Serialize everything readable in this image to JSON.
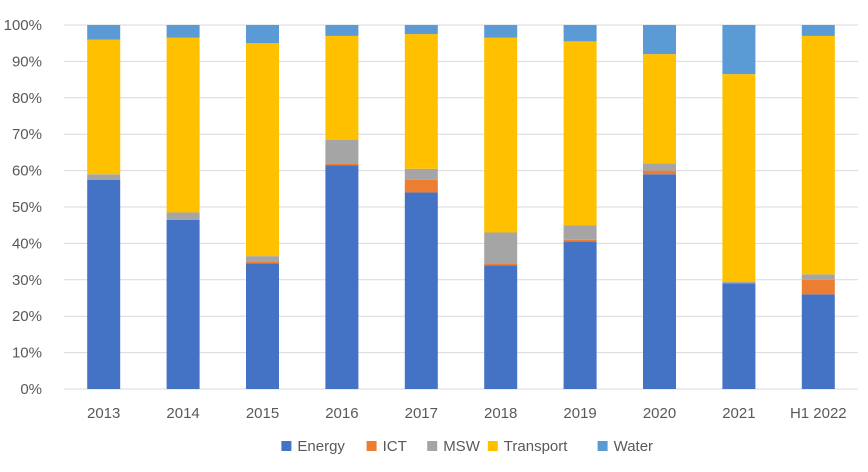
{
  "chart_data": {
    "type": "bar",
    "stacked": true,
    "title": "",
    "xlabel": "",
    "ylabel": "",
    "ylim": [
      0,
      100
    ],
    "y_ticks": [
      "0%",
      "10%",
      "20%",
      "30%",
      "40%",
      "50%",
      "60%",
      "70%",
      "80%",
      "90%",
      "100%"
    ],
    "grid": true,
    "legend_position": "bottom",
    "categories": [
      "2013",
      "2014",
      "2015",
      "2016",
      "2017",
      "2018",
      "2019",
      "2020",
      "2021",
      "H1 2022"
    ],
    "series": [
      {
        "name": "Energy",
        "color": "#4472C4",
        "values": [
          57.5,
          46.5,
          34.5,
          61.5,
          54,
          34,
          40.5,
          59,
          29,
          26
        ]
      },
      {
        "name": "ICT",
        "color": "#ED7D31",
        "values": [
          0,
          0,
          0.5,
          0.5,
          3.5,
          0.5,
          0.5,
          1,
          0,
          4
        ]
      },
      {
        "name": "MSW",
        "color": "#A5A5A5",
        "values": [
          1.5,
          2,
          1.5,
          6.5,
          3,
          8.5,
          4,
          2,
          0.5,
          1.5
        ]
      },
      {
        "name": "Transport",
        "color": "#FFC000",
        "values": [
          37,
          48,
          58.5,
          28.5,
          37,
          53.5,
          50.5,
          30,
          57,
          65.5
        ]
      },
      {
        "name": "Water",
        "color": "#5B9BD5",
        "values": [
          4,
          3.5,
          5,
          3,
          2.5,
          3.5,
          4.5,
          8,
          13.5,
          3
        ]
      }
    ]
  }
}
